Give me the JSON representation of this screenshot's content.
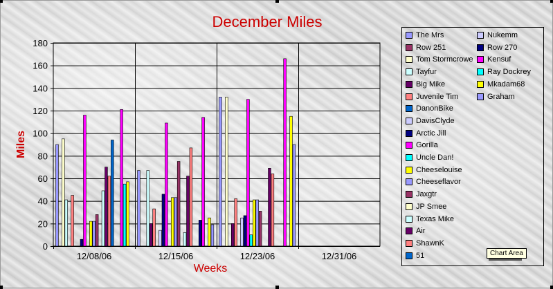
{
  "tooltip": "Chart Area",
  "colors": {
    "title": "#cc0000",
    "axis_title": "#cc0000"
  },
  "chart_data": {
    "type": "bar",
    "title": "December Miles",
    "xlabel": "Weeks",
    "ylabel": "Miles",
    "ylim": [
      0,
      180
    ],
    "yticks": [
      0,
      20,
      40,
      60,
      80,
      100,
      120,
      140,
      160,
      180
    ],
    "grid": true,
    "legend_position": "right",
    "categories": [
      "12/08/06",
      "12/15/06",
      "12/23/06",
      "12/31/06"
    ],
    "series": [
      {
        "name": "The Mrs",
        "color": "#9999ff",
        "values": [
          90,
          67,
          132,
          null
        ]
      },
      {
        "name": "Row 251",
        "color": "#993366",
        "values": [
          null,
          null,
          null,
          null
        ]
      },
      {
        "name": "Tom Stormcrowe",
        "color": "#ffffcc",
        "values": [
          95,
          null,
          132,
          null
        ]
      },
      {
        "name": "Tayfur",
        "color": "#ccffff",
        "values": [
          41,
          67,
          null,
          null
        ]
      },
      {
        "name": "Big Mike",
        "color": "#660066",
        "values": [
          null,
          20,
          20,
          null
        ]
      },
      {
        "name": "Juvenile Tim",
        "color": "#ff8080",
        "values": [
          45,
          33,
          42,
          null
        ]
      },
      {
        "name": "DanonBike",
        "color": "#0066cc",
        "values": [
          null,
          null,
          null,
          null
        ]
      },
      {
        "name": "DavisClyde",
        "color": "#ccccff",
        "values": [
          null,
          14,
          25,
          null
        ]
      },
      {
        "name": "Arctic Jill",
        "color": "#000080",
        "values": [
          6,
          46,
          27,
          null
        ]
      },
      {
        "name": "Gorilla",
        "color": "#ff00ff",
        "values": [
          116,
          109,
          130,
          null
        ]
      },
      {
        "name": "Uncle Dan!",
        "color": "#00ffff",
        "values": [
          null,
          null,
          10,
          null
        ]
      },
      {
        "name": "Cheeselouise",
        "color": "#ffff00",
        "values": [
          22,
          43,
          41,
          null
        ]
      },
      {
        "name": "Cheeseflavor",
        "color": "#9999ff",
        "values": [
          22,
          43,
          41,
          null
        ]
      },
      {
        "name": "Jaxgtr",
        "color": "#993366",
        "values": [
          28,
          75,
          31,
          null
        ]
      },
      {
        "name": "JP Smee",
        "color": "#ffffcc",
        "values": [
          null,
          null,
          null,
          null
        ]
      },
      {
        "name": "Texas Mike",
        "color": "#ccffff",
        "values": [
          49,
          12,
          null,
          null
        ]
      },
      {
        "name": "Air",
        "color": "#660066",
        "values": [
          70,
          62,
          69,
          null
        ]
      },
      {
        "name": "ShawnK",
        "color": "#ff8080",
        "values": [
          62,
          87,
          64,
          null
        ]
      },
      {
        "name": "51",
        "color": "#0066cc",
        "values": [
          94,
          null,
          null,
          null
        ]
      },
      {
        "name": "Nukemm",
        "color": "#ccccff",
        "values": [
          null,
          null,
          null,
          null
        ]
      },
      {
        "name": "Row 270",
        "color": "#000080",
        "values": [
          null,
          23,
          null,
          null
        ]
      },
      {
        "name": "Kensuf",
        "color": "#ff00ff",
        "values": [
          121,
          114,
          166,
          null
        ]
      },
      {
        "name": "Ray Dockrey",
        "color": "#00ffff",
        "values": [
          55,
          null,
          null,
          null
        ]
      },
      {
        "name": "Mkadam68",
        "color": "#ffff00",
        "values": [
          57,
          25,
          115,
          null
        ]
      },
      {
        "name": "Graham",
        "color": "#9999ff",
        "values": [
          null,
          19,
          90,
          null
        ]
      }
    ]
  }
}
